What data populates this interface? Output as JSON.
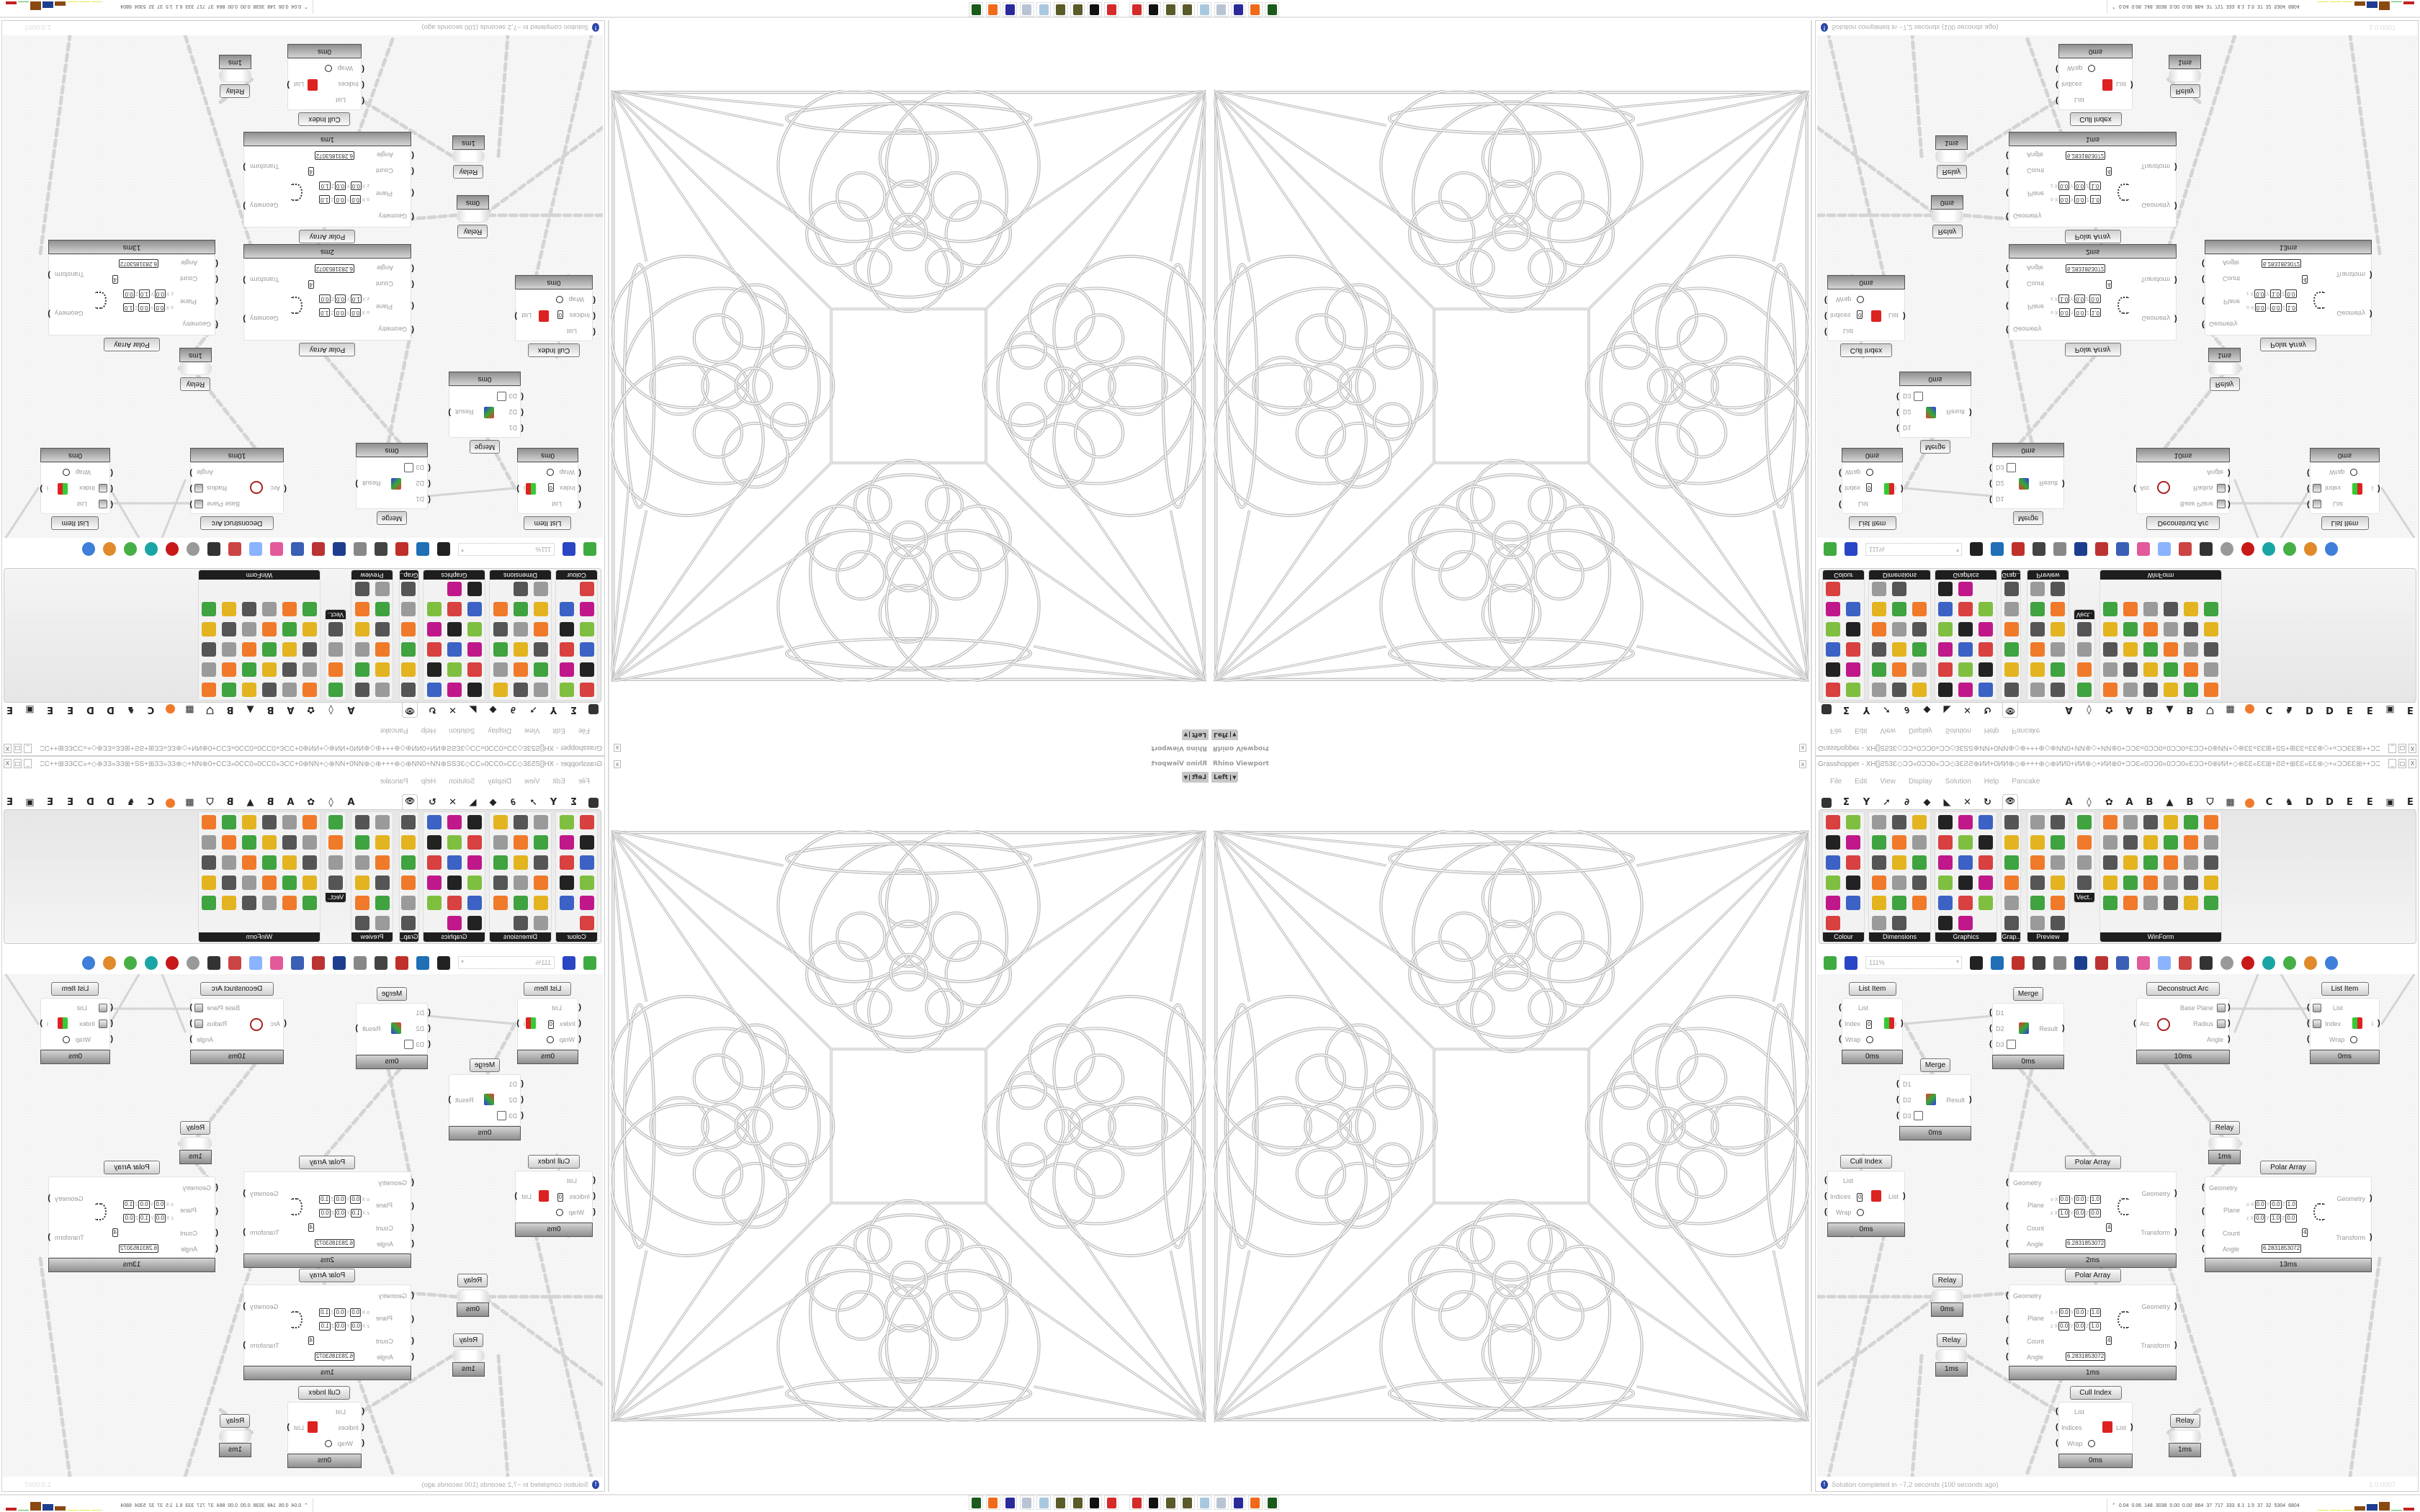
{
  "viewport": {
    "title": "Rhino Viewport",
    "view": "Left",
    "close": "x"
  },
  "grasshopper": {
    "title": "Grasshopper - XH[]Ƨ53Ɛ◇ƆƆ«0ƆƆ0«ƆƆ◇3ƐƧƧ⊕ИИ+0ИИ⊕◇⊕+++⊕◇⊕ИИ0+ИИ⊕◇+ИИ⊕0+ƆƆƐ«0ƆƆ0«0ƆƆ0«ƐƆƆ+0⊕ИИ+◇⊕ƐƐ«ƐƐ⊞+ƧƧ+⊞ƐƐ«ƐƐ⊕◇+«ƆƆƐƐ⊞++ƆƆ...",
    "window_buttons": [
      "_",
      "□",
      "X"
    ],
    "menu": [
      "File",
      "Edit",
      "View",
      "Display",
      "Solution",
      "Help",
      "Pancake"
    ],
    "tabs": [
      {
        "icon": "params-icon"
      },
      {
        "icon": "maths-icon",
        "glyph": "Σ"
      },
      {
        "icon": "sets-icon",
        "glyph": "Y"
      },
      {
        "icon": "vector-icon",
        "glyph": "➚"
      },
      {
        "icon": "curve-icon",
        "glyph": "∂"
      },
      {
        "icon": "surface-icon",
        "glyph": "◆"
      },
      {
        "icon": "mesh-icon",
        "glyph": "◣"
      },
      {
        "icon": "intersect-icon",
        "glyph": "✕"
      },
      {
        "icon": "transform-icon",
        "glyph": "↻"
      },
      {
        "icon": "display-eye-icon",
        "glyph": "👁",
        "active": true
      },
      {
        "glyph": "A"
      },
      {
        "icon": "leaf-icon",
        "glyph": "◊"
      },
      {
        "icon": "gear-icon",
        "glyph": "✿"
      },
      {
        "glyph": "A"
      },
      {
        "glyph": "B"
      },
      {
        "icon": "mountain-icon",
        "glyph": "▲"
      },
      {
        "glyph": "B"
      },
      {
        "icon": "shield-icon",
        "glyph": "⛉"
      },
      {
        "icon": "grid-icon",
        "glyph": "▦"
      },
      {
        "icon": "orange-circle-icon",
        "orange": true
      },
      {
        "glyph": "C"
      },
      {
        "icon": "rooster-icon",
        "glyph": "♞"
      },
      {
        "glyph": "D"
      },
      {
        "glyph": "D"
      },
      {
        "glyph": "E"
      },
      {
        "glyph": "E"
      },
      {
        "icon": "frame-icon",
        "glyph": "▣"
      },
      {
        "glyph": "E"
      }
    ],
    "palette": [
      {
        "label": "Colour",
        "cols": 2,
        "count": 11
      },
      {
        "label": "Dimensions",
        "cols": 3,
        "count": 17
      },
      {
        "label": "Graphics",
        "cols": 3,
        "count": 17
      },
      {
        "label": "Grap..",
        "cols": 1,
        "count": 6
      },
      {
        "label": "Preview",
        "cols": 2,
        "count": 12
      },
      {
        "label": "Vect..",
        "cols": 1,
        "count": 4
      },
      {
        "label": "WinForm",
        "cols": 6,
        "count": 30
      }
    ],
    "palette_colors": [
      "#d94040",
      "#3fa33f",
      "#3b62c4",
      "#e3b420",
      "#c0188a",
      "#555555",
      "#222222",
      "#9a9a9a",
      "#7fbf3f",
      "#f07a2a"
    ],
    "toolbar": {
      "zoom": "111%",
      "icons": [
        "open-file-icon",
        "save-icon",
        "zoom-box",
        "zoom-extents-icon",
        "preview-eye-icon",
        "sketch-pen-icon",
        "plugin-icon",
        "email-icon",
        "gha-icon",
        "window-icon",
        "search-s-icon",
        "package-icon",
        "bulb-icon",
        "dna-icon",
        "cylinder-icon",
        "tube-icon",
        "red-box-icon",
        "teal-shape-icon",
        "green-ring-icon",
        "half-sphere-icon",
        "blue-sphere-icon"
      ],
      "icon_colors": [
        "#3faa3f",
        "#2b46c4",
        "",
        "#222",
        "#1e6fb5",
        "#c0302a",
        "#444",
        "#888",
        "#1d3d8f",
        "#b33",
        "#3a5fb5",
        "#e35a9a",
        "#8ab4ff",
        "#c44",
        "#333",
        "#999",
        "#c81818",
        "#1aa5a5",
        "#46b046",
        "#e08a2a",
        "#3d7fd9"
      ]
    },
    "canvas": {
      "components": [
        {
          "kind": "list_item",
          "label": "List Item",
          "inputs": [
            "List",
            "Index",
            "Wrap"
          ],
          "index_value": "0",
          "outputs": [
            "i"
          ],
          "time": "0ms"
        },
        {
          "kind": "merge",
          "label": "Merge",
          "inputs": [
            "D1",
            "D2",
            "D3"
          ],
          "outputs": [
            "Result"
          ],
          "time": "0ms"
        },
        {
          "kind": "deconstruct_arc",
          "label": "Deconstruct Arc",
          "inputs": [
            "Arc"
          ],
          "outputs": [
            "Base Plane",
            "Radius",
            "Angle"
          ],
          "time": "10ms"
        },
        {
          "kind": "list_item",
          "label": "List Item",
          "inputs": [
            "List",
            "Index",
            "Wrap"
          ],
          "outputs": [
            "i"
          ],
          "time": "0ms"
        },
        {
          "kind": "merge",
          "label": "Merge",
          "inputs": [
            "D1",
            "D2",
            "D3"
          ],
          "outputs": [
            "Result"
          ],
          "time": "0ms"
        },
        {
          "kind": "relay",
          "label": "Relay",
          "time": "1ms"
        },
        {
          "kind": "cull_index",
          "label": "Cull Index",
          "inputs": [
            "List",
            "Indices",
            "Wrap"
          ],
          "index_value": "0",
          "outputs": [
            "List"
          ],
          "time": "0ms"
        },
        {
          "kind": "polar_array",
          "label": "Polar Array",
          "inputs": [
            "Geometry",
            "Plane",
            "Count",
            "Angle"
          ],
          "outputs": [
            "Geometry",
            "Transform"
          ],
          "plane_origin": [
            "0.0",
            "0.0",
            "1.0"
          ],
          "plane_z": [
            "1.0",
            "0.0",
            "0.0"
          ],
          "count": "4",
          "angle": "6.2831853072",
          "time": "2ms"
        },
        {
          "kind": "polar_array",
          "label": "Polar Array",
          "inputs": [
            "Geometry",
            "Plane",
            "Count",
            "Angle"
          ],
          "outputs": [
            "Geometry",
            "Transform"
          ],
          "plane_origin": [
            "0.0",
            "0.0",
            "1.0"
          ],
          "plane_z": [
            "0.0",
            "1.0",
            "0.0"
          ],
          "count": "4",
          "angle": "6.2831853072",
          "time": "13ms"
        },
        {
          "kind": "relay",
          "label": "Relay",
          "time": "0ms"
        },
        {
          "kind": "polar_array",
          "label": "Polar Array",
          "inputs": [
            "Geometry",
            "Plane",
            "Count",
            "Angle"
          ],
          "outputs": [
            "Geometry",
            "Transform"
          ],
          "plane_origin": [
            "0.0",
            "0.0",
            "1.0"
          ],
          "plane_z": [
            "0.0",
            "0.0",
            "1.0"
          ],
          "count": "4",
          "angle": "6.2831853072",
          "time": "1ms"
        },
        {
          "kind": "relay",
          "label": "Relay",
          "time": "1ms"
        },
        {
          "kind": "cull_index",
          "label": "Cull Index",
          "inputs": [
            "List",
            "Indices",
            "Wrap"
          ],
          "outputs": [
            "List"
          ],
          "time": "0ms"
        },
        {
          "kind": "relay",
          "label": "Relay",
          "time": "1ms"
        }
      ],
      "plane_labels": {
        "origin": "o",
        "z": "z",
        "x": "X",
        "y": "Y",
        "zc": "Z"
      }
    },
    "status": {
      "message": "Solution completed in ~7,2 seconds (100 seconds ago)",
      "version": "1.0.0007"
    }
  },
  "system_bar": {
    "stats": [
      "0.04",
      "0.06",
      "148",
      "3038",
      "0.00",
      "0.00",
      "864",
      "37",
      "717",
      "333",
      "6.1",
      "1.5",
      "37",
      "32",
      "5304",
      "6804"
    ],
    "graph_levels": [
      0.05,
      0.05,
      0.05,
      0.5,
      0.75,
      1.0,
      0.1,
      0.3
    ],
    "graph_colors": [
      "#e8e84a",
      "#e8e84a",
      "#e8e84a",
      "#8a4a10",
      "#1d3d8f",
      "#8a4a10",
      "#4ac04a",
      "#c42020"
    ],
    "taskbar_icons": [
      {
        "name": "red-app-icon",
        "color": "#d42a2a"
      },
      {
        "name": "penguin-icon",
        "color": "#111111"
      },
      {
        "name": "bug-icon",
        "color": "#5a5a2a"
      },
      {
        "name": "bug-icon",
        "color": "#5a5a2a"
      },
      {
        "name": "notepad-icon",
        "color": "#a8c8e0"
      },
      {
        "name": "scroll-icon",
        "color": "#b8c4d4"
      },
      {
        "name": "floppy-64-icon",
        "color": "#2a2a9a"
      },
      {
        "name": "firefox-icon",
        "color": "#f06a1a"
      },
      {
        "name": "terminal-icon",
        "color": "#1a5a1a"
      }
    ]
  }
}
